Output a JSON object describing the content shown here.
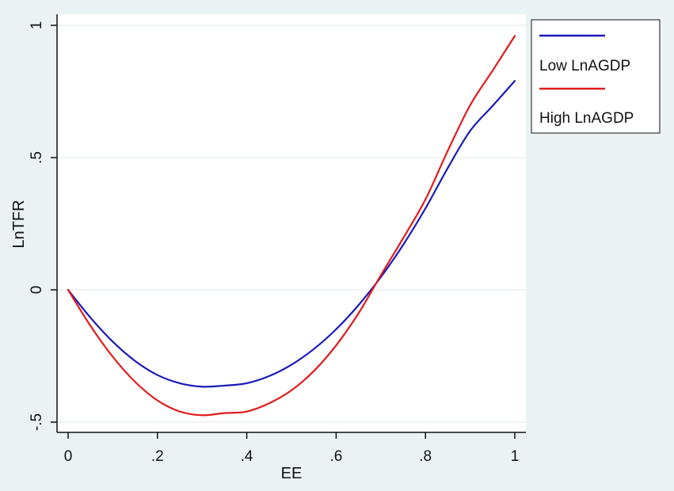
{
  "chart_data": {
    "type": "line",
    "title": "",
    "xlabel": "EE",
    "ylabel": "LnTFR",
    "xlim": [
      0,
      1
    ],
    "ylim": [
      -0.5,
      1
    ],
    "x_ticks": [
      0,
      0.2,
      0.4,
      0.6,
      0.8,
      1
    ],
    "x_tick_labels": [
      "0",
      ".2",
      ".4",
      ".6",
      ".8",
      "1"
    ],
    "y_ticks": [
      -0.5,
      0,
      0.5,
      1
    ],
    "y_tick_labels": [
      "-.5",
      "0",
      ".5",
      "1"
    ],
    "grid": "horizontal",
    "legend_position": "top-right outside",
    "x": [
      0,
      0.05,
      0.1,
      0.15,
      0.2,
      0.25,
      0.3,
      0.35,
      0.4,
      0.45,
      0.5,
      0.55,
      0.6,
      0.65,
      0.7,
      0.75,
      0.8,
      0.85,
      0.9,
      0.95,
      1
    ],
    "series": [
      {
        "name": "Low LnAGDP",
        "color": "#1a1ab8",
        "values": [
          0,
          -0.105,
          -0.196,
          -0.269,
          -0.322,
          -0.353,
          -0.366,
          -0.362,
          -0.353,
          -0.326,
          -0.283,
          -0.224,
          -0.149,
          -0.058,
          0.048,
          0.17,
          0.308,
          0.461,
          0.601,
          0.695,
          0.79
        ]
      },
      {
        "name": "High LnAGDP",
        "color": "#e01b1b",
        "values": [
          0,
          -0.136,
          -0.253,
          -0.348,
          -0.418,
          -0.46,
          -0.474,
          -0.466,
          -0.46,
          -0.429,
          -0.38,
          -0.307,
          -0.21,
          -0.089,
          0.055,
          0.195,
          0.342,
          0.526,
          0.698,
          0.828,
          0.96
        ]
      }
    ]
  },
  "colors": {
    "page_background": "#eaf2f3",
    "plot_background": "#ffffff",
    "gridline": "#e6eef0",
    "axis": "#111111",
    "legend_border": "#111111"
  }
}
